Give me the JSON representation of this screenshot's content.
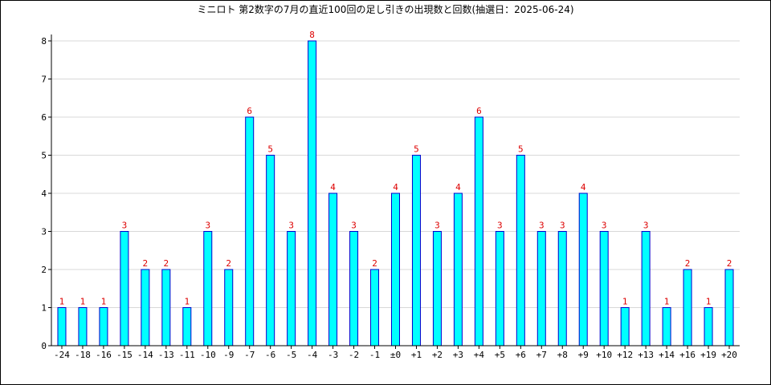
{
  "chart_data": {
    "type": "bar",
    "title": "ミニロト 第2数字の7月の直近100回の足し引きの出現数と回数(抽選日：2025-06-24)",
    "xlabel": "",
    "ylabel": "",
    "ylim": [
      0,
      8
    ],
    "yticks": [
      0,
      1,
      2,
      3,
      4,
      5,
      6,
      7,
      8
    ],
    "grid": true,
    "legend": "none",
    "categories": [
      "-24",
      "-18",
      "-16",
      "-15",
      "-14",
      "-13",
      "-11",
      "-10",
      "-9",
      "-7",
      "-6",
      "-5",
      "-4",
      "-3",
      "-2",
      "-1",
      "±0",
      "+1",
      "+2",
      "+3",
      "+4",
      "+5",
      "+6",
      "+7",
      "+8",
      "+9",
      "+10",
      "+12",
      "+13",
      "+14",
      "+16",
      "+19",
      "+20"
    ],
    "values": [
      1,
      1,
      1,
      3,
      2,
      2,
      1,
      3,
      2,
      6,
      5,
      3,
      8,
      4,
      3,
      2,
      4,
      5,
      3,
      4,
      6,
      3,
      5,
      3,
      3,
      4,
      3,
      1,
      3,
      1,
      2,
      1,
      2
    ],
    "colors": {
      "bar_fill": "#00ffff",
      "bar_stroke": "#0000cc",
      "value_label": "#dd0000",
      "grid": "#d8d8d8",
      "axis": "#000000"
    }
  }
}
